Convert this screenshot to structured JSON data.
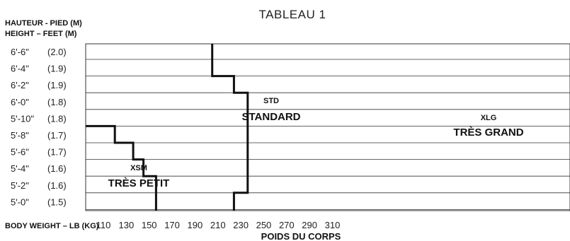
{
  "chart_data": {
    "type": "table",
    "title": "TABLEAU 1",
    "ylabel": [
      "HAUTEUR - PIED (M)",
      "HEIGHT – FEET (M)"
    ],
    "xlabel_left": "BODY WEIGHT – LB (KG)",
    "xlabel": "POIDS DU CORPS",
    "heights": [
      {
        "ft": "6'-6\"",
        "m": "(2.0)"
      },
      {
        "ft": "6'-4\"",
        "m": "(1.9)"
      },
      {
        "ft": "6'-2\"",
        "m": "(1.9)"
      },
      {
        "ft": "6'-0\"",
        "m": "(1.8)"
      },
      {
        "ft": "5'-10\"",
        "m": "(1.8)"
      },
      {
        "ft": "5'-8\"",
        "m": "(1.7)"
      },
      {
        "ft": "5'-6\"",
        "m": "(1.7)"
      },
      {
        "ft": "5'-4\"",
        "m": "(1.6)"
      },
      {
        "ft": "5'-2\"",
        "m": "(1.6)"
      },
      {
        "ft": "5'-0\"",
        "m": "(1.5)"
      }
    ],
    "weights": [
      "110",
      "130",
      "150",
      "170",
      "190",
      "210",
      "230",
      "250",
      "270",
      "290",
      "310"
    ],
    "xlim": [
      110,
      310
    ],
    "zones": [
      {
        "code": "XSM",
        "name": "TRÈS PETIT"
      },
      {
        "code": "STD",
        "name": "STANDARD"
      },
      {
        "code": "XLG",
        "name": "TRÈS GRAND"
      }
    ],
    "boundary_xsm_std": [
      {
        "weight": 110,
        "height_index": 4
      },
      {
        "weight": 120,
        "height_index": 4
      },
      {
        "weight": 120,
        "height_index": 5
      },
      {
        "weight": 136,
        "height_index": 5
      },
      {
        "weight": 136,
        "height_index": 6
      },
      {
        "weight": 145,
        "height_index": 6
      },
      {
        "weight": 145,
        "height_index": 7
      },
      {
        "weight": 156,
        "height_index": 7
      },
      {
        "weight": 156,
        "height_index": 10
      }
    ],
    "boundary_std_xlg": [
      {
        "weight": 205,
        "height_index": 0
      },
      {
        "weight": 205,
        "height_index": 1
      },
      {
        "weight": 224,
        "height_index": 1
      },
      {
        "weight": 224,
        "height_index": 2
      },
      {
        "weight": 236,
        "height_index": 2
      },
      {
        "weight": 236,
        "height_index": 8
      },
      {
        "weight": 224,
        "height_index": 8
      },
      {
        "weight": 224,
        "height_index": 10
      }
    ]
  }
}
